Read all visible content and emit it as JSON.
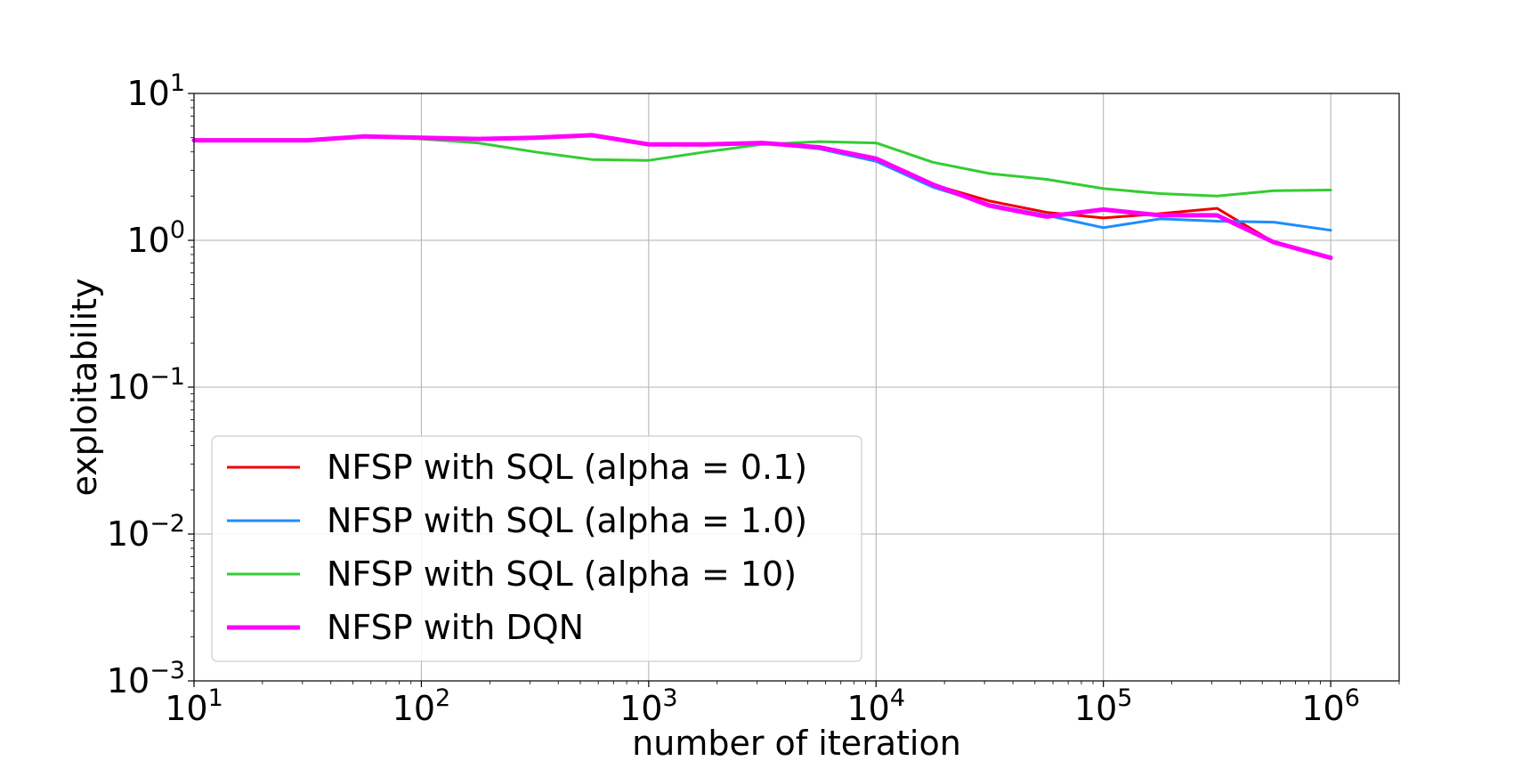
{
  "chart_data": {
    "type": "line",
    "title": "",
    "xlabel": "number of iteration",
    "ylabel": "exploitability",
    "xscale": "log",
    "yscale": "log",
    "xlim": [
      10,
      2000000
    ],
    "ylim": [
      0.001,
      10
    ],
    "x_ticks": [
      {
        "value": 10,
        "base": "10",
        "exp": "1"
      },
      {
        "value": 100,
        "base": "10",
        "exp": "2"
      },
      {
        "value": 1000,
        "base": "10",
        "exp": "3"
      },
      {
        "value": 10000,
        "base": "10",
        "exp": "4"
      },
      {
        "value": 100000,
        "base": "10",
        "exp": "5"
      },
      {
        "value": 1000000,
        "base": "10",
        "exp": "6"
      }
    ],
    "y_ticks": [
      {
        "value": 10,
        "base": "10",
        "exp": "1"
      },
      {
        "value": 1,
        "base": "10",
        "exp": "0"
      },
      {
        "value": 0.1,
        "base": "10",
        "exp": "−1"
      },
      {
        "value": 0.01,
        "base": "10",
        "exp": "−2"
      },
      {
        "value": 0.001,
        "base": "10",
        "exp": "−3"
      }
    ],
    "grid": true,
    "legend_position": "lower-left",
    "x": [
      10,
      31.6,
      56.2,
      100,
      177.8,
      316,
      562,
      1000,
      1778,
      3162,
      5623,
      10000,
      17783,
      31623,
      56234,
      100000,
      177828,
      316228,
      562341,
      1000000
    ],
    "series": [
      {
        "name": "NFSP with SQL (alpha = 0.1)",
        "color": "#ee0000",
        "width": 3,
        "values": [
          4.8,
          4.8,
          5.1,
          5.0,
          4.9,
          5.0,
          5.2,
          4.5,
          4.5,
          4.6,
          4.3,
          3.6,
          2.4,
          1.85,
          1.55,
          1.42,
          1.52,
          1.65,
          0.97,
          0.76
        ]
      },
      {
        "name": "NFSP with SQL (alpha = 1.0)",
        "color": "#1e8cff",
        "width": 3,
        "values": [
          4.8,
          4.8,
          5.1,
          5.0,
          4.9,
          5.0,
          5.2,
          4.5,
          4.5,
          4.6,
          4.2,
          3.45,
          2.3,
          1.75,
          1.48,
          1.22,
          1.4,
          1.35,
          1.33,
          1.17
        ]
      },
      {
        "name": "NFSP with SQL (alpha = 10)",
        "color": "#33cc33",
        "width": 3,
        "values": [
          4.8,
          4.8,
          5.1,
          4.9,
          4.6,
          4.0,
          3.55,
          3.5,
          4.0,
          4.5,
          4.7,
          4.6,
          3.4,
          2.85,
          2.6,
          2.25,
          2.08,
          2.0,
          2.18,
          2.2
        ]
      },
      {
        "name": "NFSP with DQN",
        "color": "#ff00ff",
        "width": 5,
        "values": [
          4.8,
          4.8,
          5.1,
          5.0,
          4.9,
          5.0,
          5.2,
          4.5,
          4.5,
          4.6,
          4.3,
          3.6,
          2.4,
          1.72,
          1.45,
          1.62,
          1.48,
          1.48,
          0.97,
          0.76
        ]
      }
    ]
  }
}
